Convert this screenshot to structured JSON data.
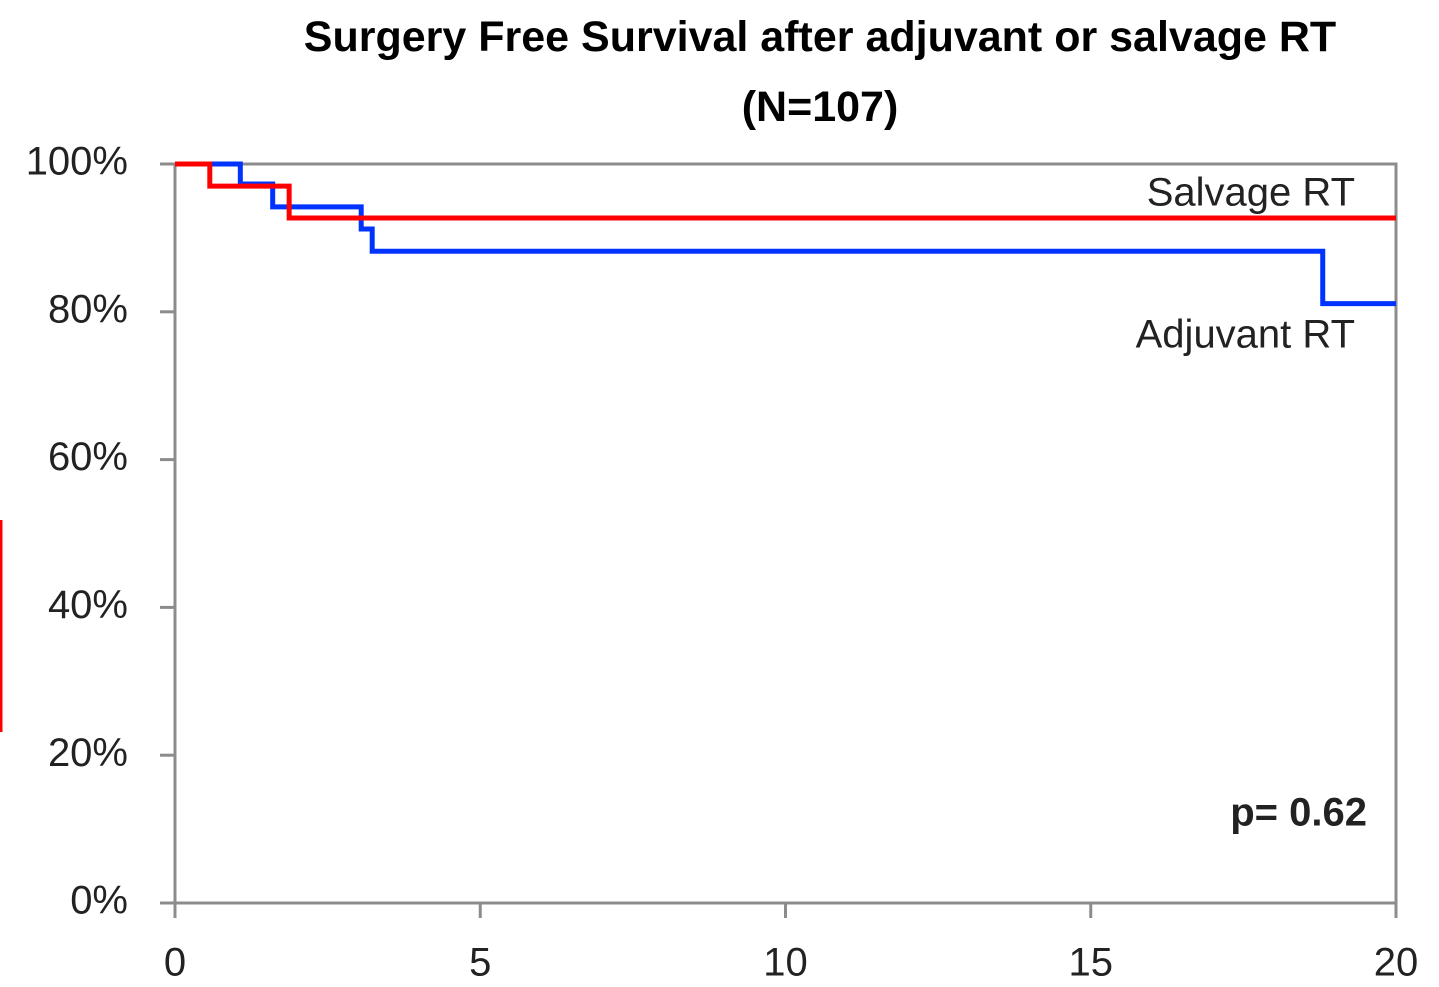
{
  "chart_data": {
    "type": "step",
    "title": "Surgery Free Survival after adjuvant or salvage RT (N=107)",
    "series": [
      {
        "name": "Adjuvant RT",
        "color": "#0033ff",
        "x": [
          0,
          1.07,
          1.6,
          3.05,
          3.23,
          18.8,
          20
        ],
        "values": [
          100,
          97.3,
          94.2,
          91.2,
          88.2,
          81.1,
          81.1
        ]
      },
      {
        "name": "Salvage RT",
        "color": "#ff0000",
        "x": [
          0,
          0.57,
          1.87,
          20
        ],
        "values": [
          100,
          97.0,
          92.7,
          92.7
        ]
      }
    ],
    "annotation": "p= 0.62",
    "xlim": [
      0,
      20
    ],
    "xticks": [
      0,
      5,
      10,
      15,
      20
    ],
    "ylim": [
      0,
      100
    ],
    "yticks": [
      {
        "value": 0,
        "label": "0%"
      },
      {
        "value": 20,
        "label": "20%"
      },
      {
        "value": 40,
        "label": "40%"
      },
      {
        "value": 60,
        "label": "60%"
      },
      {
        "value": 80,
        "label": "80%"
      },
      {
        "value": 100,
        "label": "100%"
      }
    ]
  }
}
